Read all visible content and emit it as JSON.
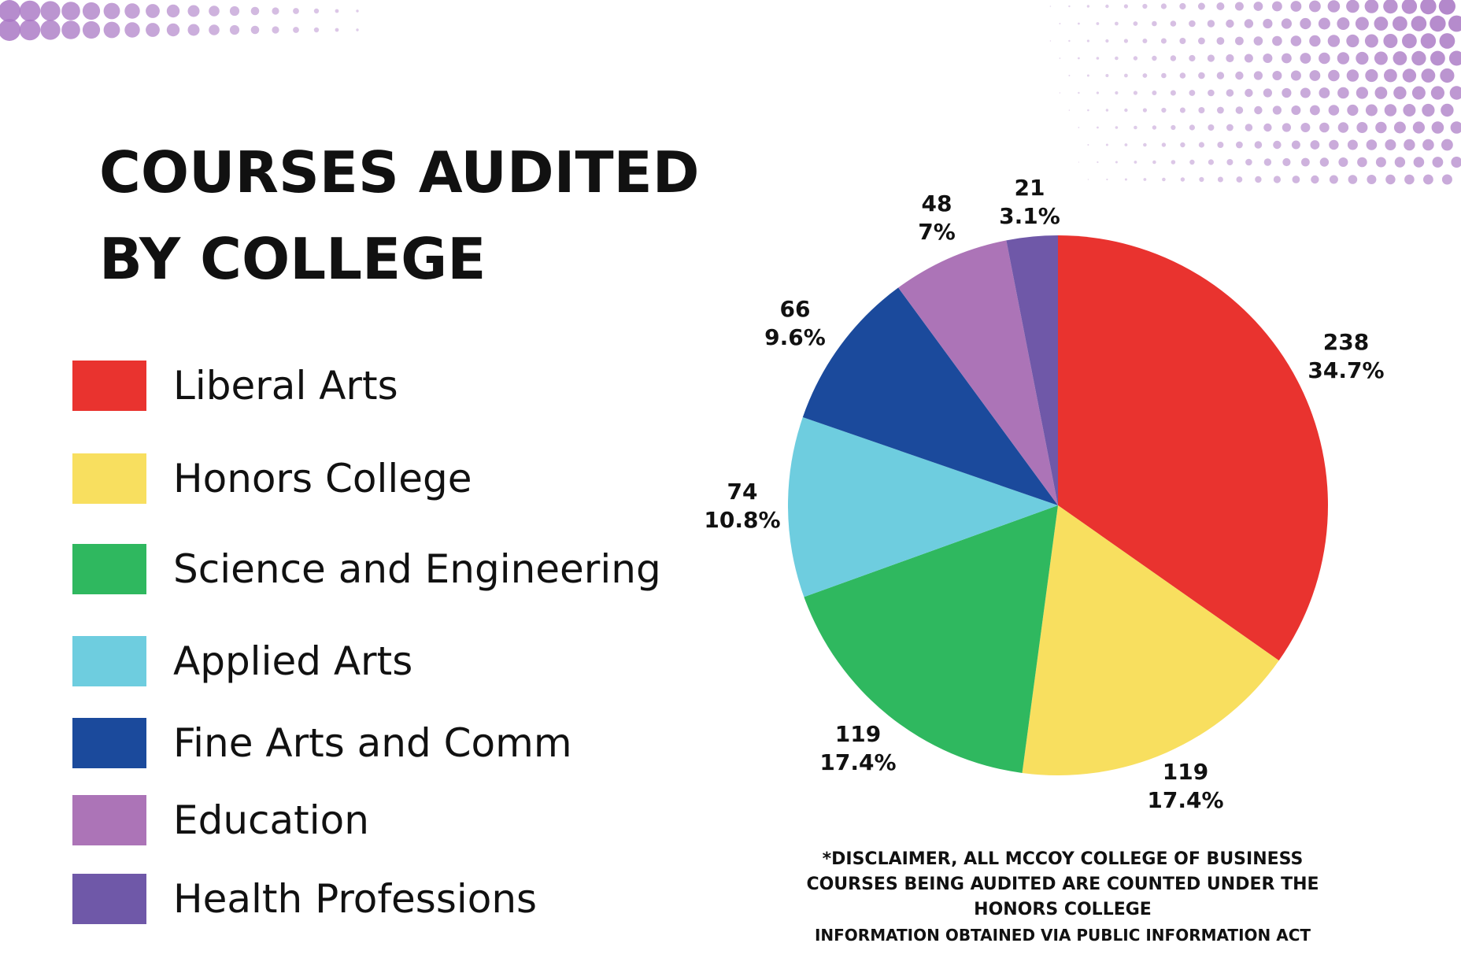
{
  "title_lines": [
    "COURSES AUDITED",
    "BY COLLEGE"
  ],
  "disclaimer": {
    "lines": [
      "*DISCLAIMER, ALL MCCOY COLLEGE OF BUSINESS",
      "COURSES BEING AUDITED ARE COUNTED UNDER THE",
      "HONORS COLLEGE"
    ],
    "source": "INFORMATION OBTAINED VIA PUBLIC INFORMATION ACT"
  },
  "colors": {
    "liberal_arts": "#e9332f",
    "honors_college": "#f8df5f",
    "science_engineering": "#2fb85f",
    "applied_arts": "#6ecddf",
    "fine_arts_comm": "#1b4a9c",
    "education": "#ac74b7",
    "health_professions": "#6f58a8",
    "decor_purple": "#a978c4"
  },
  "chart_data": {
    "type": "pie",
    "title": "COURSES AUDITED BY COLLEGE",
    "legend_position": "left",
    "slices": [
      {
        "label": "Liberal Arts",
        "value": 238,
        "percent_label": "34.7%",
        "color": "#e9332f"
      },
      {
        "label": "Honors College",
        "value": 119,
        "percent_label": "17.4%",
        "color": "#f8df5f"
      },
      {
        "label": "Science and Engineering",
        "value": 119,
        "percent_label": "17.4%",
        "color": "#2fb85f"
      },
      {
        "label": "Applied Arts",
        "value": 74,
        "percent_label": "10.8%",
        "color": "#6ecddf"
      },
      {
        "label": "Fine Arts and Comm",
        "value": 66,
        "percent_label": "9.6%",
        "color": "#1b4a9c"
      },
      {
        "label": "Education",
        "value": 48,
        "percent_label": "7%",
        "color": "#ac74b7"
      },
      {
        "label": "Health Professions",
        "value": 21,
        "percent_label": "3.1%",
        "color": "#6f58a8"
      }
    ]
  }
}
